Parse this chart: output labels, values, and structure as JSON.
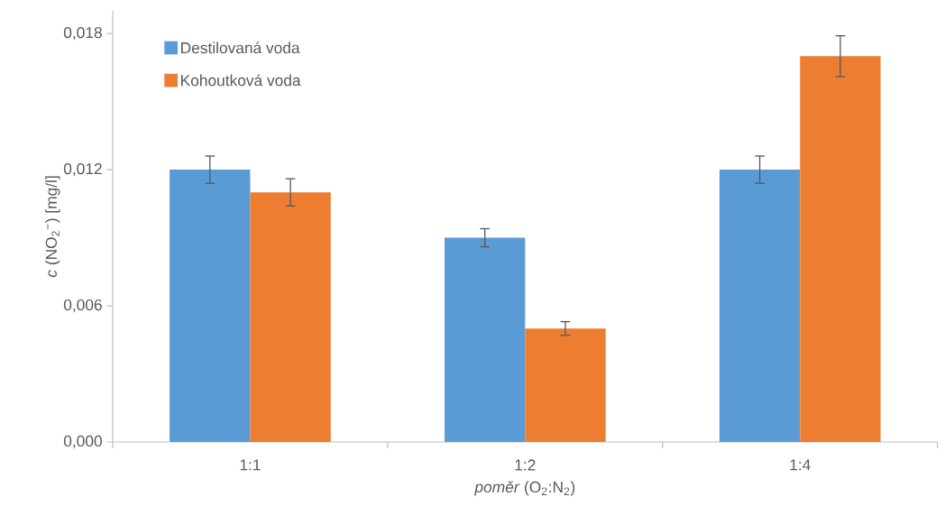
{
  "chart_data": {
    "type": "bar",
    "xlabel": "*poměr* (O$_{2}$:N$_{2}$)",
    "ylabel": "*c* (NO$_{2}$$^{−}$) [mg/l]",
    "categories": [
      "1:1",
      "1:2",
      "1:4"
    ],
    "series": [
      {
        "name": "Destilovaná voda",
        "color": "#5b9bd5",
        "values": [
          0.012,
          0.009,
          0.012
        ],
        "errors": [
          0.0006,
          0.0004,
          0.0006
        ]
      },
      {
        "name": "Kohoutková voda",
        "color": "#ed7d31",
        "values": [
          0.011,
          0.005,
          0.017
        ],
        "errors": [
          0.0006,
          0.0003,
          0.0009
        ]
      }
    ],
    "ylim": [
      0,
      0.019
    ],
    "yticks": [
      {
        "value": 0,
        "label": "0,000"
      },
      {
        "value": 0.006,
        "label": "0,006"
      },
      {
        "value": 0.012,
        "label": "0,012"
      },
      {
        "value": 0.018,
        "label": "0,018"
      }
    ],
    "legend": "top left"
  }
}
